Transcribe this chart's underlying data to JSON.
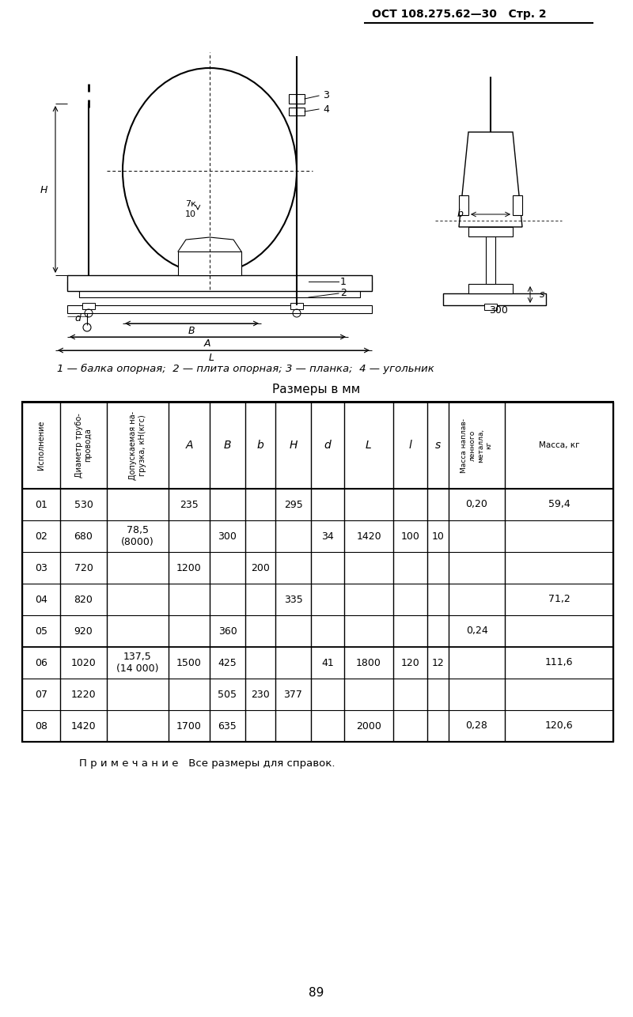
{
  "header_text": "ОСТ 108.275.62—30   Стр. 2",
  "legend_text": "1 — балка опорная;  2 — плита опорная; 3 — планка;  4 — угольник",
  "table_title": "Размеры в мм",
  "note_text": "П р и м е ч а н и е   Все размеры для справок.",
  "page_number": "89",
  "col_headers_rotated": [
    "Исполнение",
    "Диаметр трубо-провода",
    "Допускаемая нагрузка, кН(кгс)",
    "A",
    "B",
    "b",
    "H",
    "d",
    "L",
    "l",
    "s",
    "Масса наплавленного металла, кг",
    "Масса, кг"
  ],
  "rows": [
    [
      "01",
      "530",
      "",
      "235",
      "",
      "",
      "295",
      "",
      "",
      "",
      "",
      "0,20",
      "59,4"
    ],
    [
      "02",
      "680",
      "78,5\n(8000)",
      "",
      "300",
      "",
      "",
      "34",
      "1420",
      "100",
      "10",
      "",
      ""
    ],
    [
      "03",
      "720",
      "",
      "1200",
      "",
      "200",
      "",
      "",
      "",
      "",
      "",
      "",
      ""
    ],
    [
      "04",
      "820",
      "",
      "",
      "",
      "",
      "335",
      "",
      "",
      "",
      "",
      "",
      "71,2"
    ],
    [
      "05",
      "920",
      "",
      "",
      "360",
      "",
      "",
      "",
      "",
      "",
      "",
      "0,24",
      ""
    ],
    [
      "06",
      "1020",
      "137,5\n(14 000)",
      "1500",
      "425",
      "",
      "",
      "41",
      "1800",
      "120",
      "12",
      "",
      "111,6"
    ],
    [
      "07",
      "1220",
      "",
      "",
      "505",
      "230",
      "377",
      "",
      "",
      "",
      "",
      "",
      ""
    ],
    [
      "08",
      "1420",
      "",
      "1700",
      "635",
      "",
      "",
      "",
      "2000",
      "",
      "",
      "0,28",
      "120,6"
    ]
  ],
  "bg_color": "#ffffff"
}
